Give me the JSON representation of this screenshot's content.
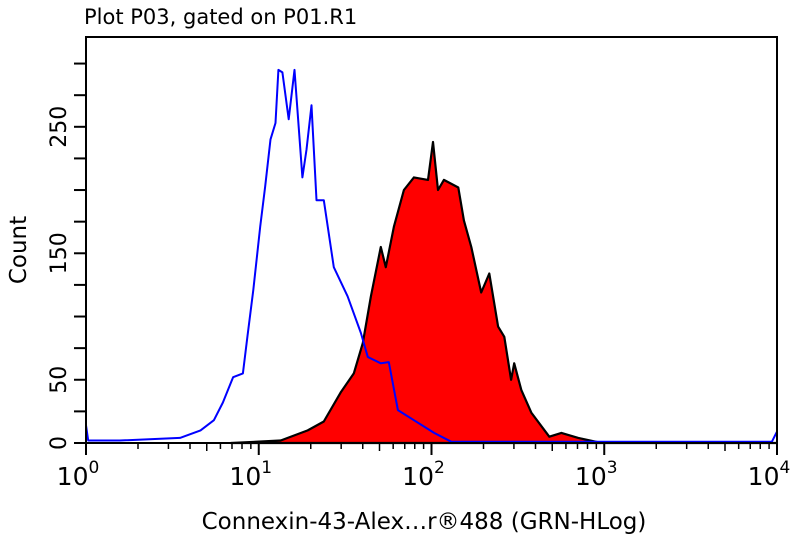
{
  "chart_data": {
    "type": "area",
    "title": "Plot P03, gated on P01.R1",
    "xlabel": "Connexin-43-Alex…r®488 (GRN-HLog)",
    "ylabel": "Count",
    "xscale": "log",
    "xlim": [
      1,
      10000
    ],
    "ylim": [
      0,
      321
    ],
    "x_ticks": [
      {
        "base": "10",
        "exp": "0",
        "value": 1
      },
      {
        "base": "10",
        "exp": "1",
        "value": 10
      },
      {
        "base": "10",
        "exp": "2",
        "value": 100
      },
      {
        "base": "10",
        "exp": "3",
        "value": 1000
      },
      {
        "base": "10",
        "exp": "4",
        "value": 10000
      }
    ],
    "y_ticks": [
      0,
      25,
      50,
      75,
      100,
      125,
      150,
      175,
      200,
      225,
      250,
      275,
      300
    ],
    "y_tick_labels": [
      {
        "value": 0,
        "label": "0"
      },
      {
        "value": 50,
        "label": "50"
      },
      {
        "value": 150,
        "label": "150"
      },
      {
        "value": 250,
        "label": "250"
      }
    ],
    "grid": false,
    "series": [
      {
        "style": "outline",
        "color": "#0000ff",
        "x": [
          1.0,
          1.03,
          1.57,
          3.5,
          4.6,
          5.5,
          6.2,
          7.1,
          8.1,
          8.6,
          9.3,
          10.2,
          10.9,
          11.7,
          12.5,
          13.0,
          13.7,
          14.9,
          16.1,
          17.9,
          18.9,
          20.2,
          21.6,
          23.8,
          27.2,
          32.7,
          39.0,
          42.8,
          50.9,
          56.6,
          63.9,
          79.1,
          103.5,
          130,
          960,
          9340,
          10000
        ],
        "y": [
          14,
          2,
          2,
          4,
          10,
          18,
          32,
          52,
          55,
          84,
          121,
          171,
          203,
          240,
          253,
          295,
          293,
          256,
          295,
          210,
          232,
          267,
          192,
          192,
          139,
          116,
          87,
          68,
          63,
          64,
          26,
          18,
          8,
          1,
          1,
          1,
          9
        ]
      },
      {
        "style": "filled",
        "color": "#ff0000",
        "outline": "#000000",
        "x": [
          6.9,
          13.4,
          19.2,
          23.8,
          29.8,
          35.5,
          40.0,
          44.6,
          50.9,
          54.4,
          60.6,
          69.2,
          79.1,
          95.4,
          102,
          109,
          118,
          143,
          154,
          170,
          194,
          216,
          243,
          264,
          289,
          301,
          331,
          378,
          481,
          565,
          708,
          964,
          10000
        ],
        "y": [
          0,
          2,
          10,
          17,
          40,
          55,
          79,
          116,
          155,
          139,
          171,
          200,
          210,
          208,
          238,
          200,
          208,
          202,
          176,
          155,
          119,
          134,
          92,
          84,
          50,
          63,
          42,
          24,
          5,
          8,
          4,
          0,
          0
        ]
      }
    ]
  }
}
